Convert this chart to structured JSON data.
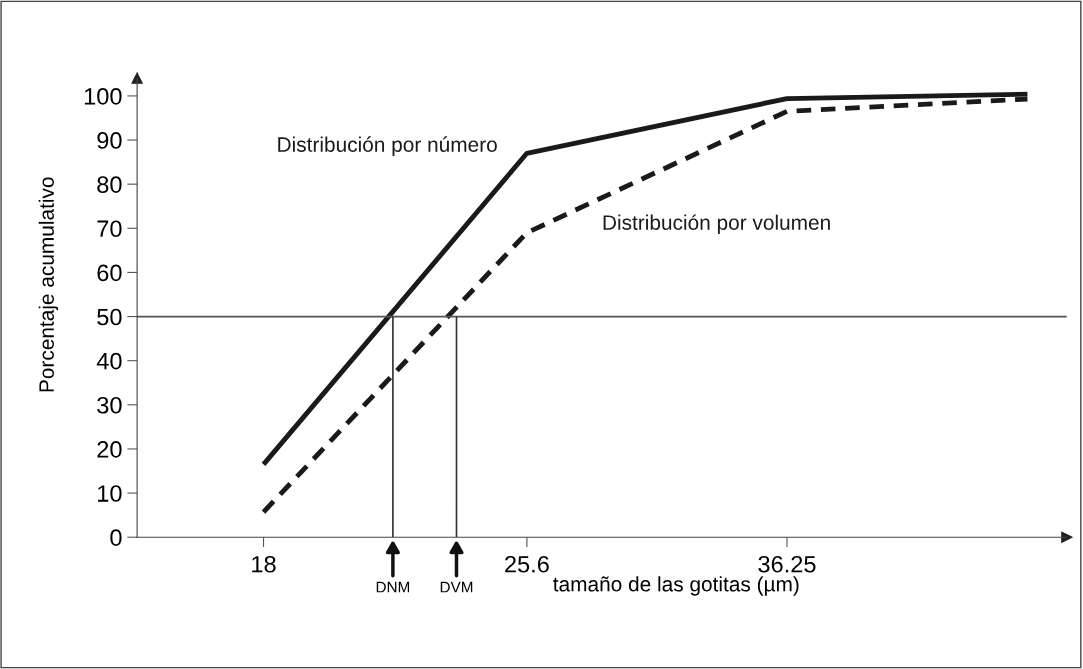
{
  "chart_data": {
    "type": "line",
    "xlabel": "tamaño de las gotitas (µm)",
    "ylabel": "Porcentaje acumulativo",
    "x": [
      18,
      25.6,
      36.25,
      50
    ],
    "series": [
      {
        "name": "Distribución por número",
        "color": "#1a1a1a",
        "values": [
          16.5,
          87,
          99.4,
          100.4
        ],
        "line_style": "solid"
      },
      {
        "name": "Distribución por volumen",
        "color": "#1a1a1a",
        "values": [
          5.7,
          69,
          96.5,
          99.3
        ],
        "line_style": "dashed"
      }
    ],
    "log": "x",
    "xlim": [
      15.2,
      52.7
    ],
    "xticks": [
      18,
      25.6,
      36.25
    ],
    "ylim": [
      0,
      104
    ],
    "yticks": [
      0,
      10,
      20,
      30,
      40,
      50,
      60,
      70,
      80,
      90,
      100
    ],
    "ref_lines": [
      {
        "axis": "y",
        "value": 50,
        "label": null,
        "color": "#555555"
      },
      {
        "axis": "x",
        "value": 21.4,
        "label": "DNM",
        "color": "#333333"
      },
      {
        "axis": "x",
        "value": 23.3,
        "label": "DVM",
        "color": "#333333"
      }
    ],
    "grid": false,
    "legend": false,
    "marker": "none"
  }
}
